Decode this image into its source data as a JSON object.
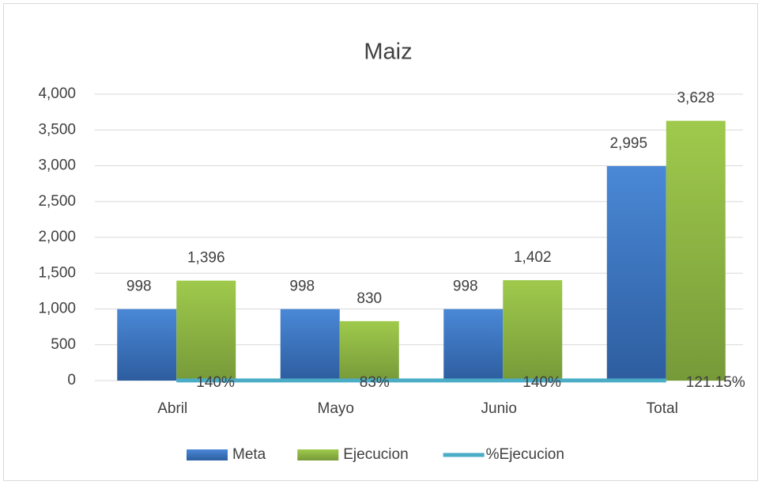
{
  "chart_data": {
    "type": "bar",
    "title": "Maiz",
    "categories": [
      "Abril",
      "Mayo",
      "Junio",
      "Total"
    ],
    "series": [
      {
        "name": "Meta",
        "type": "bar",
        "color": "#3d78c4",
        "values": [
          998,
          998,
          998,
          2995
        ],
        "value_labels": [
          "998",
          "998",
          "998",
          "2,995"
        ]
      },
      {
        "name": "Ejecucion",
        "type": "bar",
        "color": "#8cb43f",
        "values": [
          1396,
          830,
          1402,
          3628
        ],
        "value_labels": [
          "1,396",
          "830",
          "1,402",
          "3,628"
        ]
      },
      {
        "name": "%Ejecucion",
        "type": "line",
        "color": "#4bacc6",
        "values": [
          1.4,
          0.83,
          1.4,
          1.2115
        ],
        "value_labels": [
          "140%",
          "83%",
          "140%",
          "121.15%"
        ]
      }
    ],
    "ylim": [
      0,
      4000
    ],
    "yticks": [
      0,
      500,
      {
        "value": 1000,
        "label": "1,000"
      },
      {
        "value": 1500,
        "label": "1,500"
      },
      {
        "value": 2000,
        "label": "2,000"
      },
      {
        "value": 2500,
        "label": "2,500"
      },
      {
        "value": 3000,
        "label": "3,000"
      },
      {
        "value": 3500,
        "label": "3,500"
      },
      {
        "value": 4000,
        "label": "4,000"
      }
    ],
    "grid": true,
    "legend": "bottom"
  }
}
